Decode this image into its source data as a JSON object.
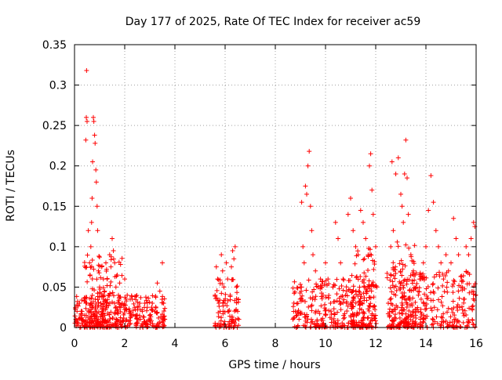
{
  "chart_data": {
    "type": "scatter",
    "title": "Day 177 of 2025, Rate Of TEC Index for receiver ac59",
    "xlabel": "GPS time / hours",
    "ylabel": "ROTI / TECUs",
    "xlim": [
      0,
      16
    ],
    "ylim": [
      0,
      0.35
    ],
    "x_ticks": [
      0,
      2,
      4,
      6,
      8,
      10,
      12,
      14,
      16
    ],
    "x_tick_labels": [
      "0",
      "2",
      "4",
      "6",
      "8",
      "10",
      "12",
      "14",
      "16"
    ],
    "y_ticks": [
      0,
      0.05,
      0.1,
      0.15,
      0.2,
      0.25,
      0.3,
      0.35
    ],
    "y_tick_labels": [
      "0",
      "0.05",
      "0.1",
      "0.15",
      "0.2",
      "0.25",
      "0.3",
      "0.35"
    ],
    "grid": true,
    "marker": "+",
    "series": [
      {
        "name": "ROTI",
        "color": "#ff0000",
        "points": [
          [
            0.05,
            0.01
          ],
          [
            0.1,
            0.02
          ],
          [
            0.15,
            0.005
          ],
          [
            0.2,
            0.03
          ],
          [
            0.25,
            0.012
          ],
          [
            0.3,
            0.02
          ],
          [
            0.35,
            0.008
          ],
          [
            0.4,
            0.015
          ],
          [
            0.45,
            0.232
          ],
          [
            0.47,
            0.26
          ],
          [
            0.48,
            0.318
          ],
          [
            0.5,
            0.255
          ],
          [
            0.55,
            0.12
          ],
          [
            0.6,
            0.08
          ],
          [
            0.62,
            0.065
          ],
          [
            0.65,
            0.1
          ],
          [
            0.68,
            0.13
          ],
          [
            0.7,
            0.16
          ],
          [
            0.72,
            0.205
          ],
          [
            0.75,
            0.26
          ],
          [
            0.77,
            0.255
          ],
          [
            0.8,
            0.238
          ],
          [
            0.82,
            0.228
          ],
          [
            0.85,
            0.195
          ],
          [
            0.87,
            0.18
          ],
          [
            0.9,
            0.15
          ],
          [
            0.92,
            0.12
          ],
          [
            0.95,
            0.07
          ],
          [
            1.0,
            0.05
          ],
          [
            1.05,
            0.03
          ],
          [
            1.1,
            0.02
          ],
          [
            1.15,
            0.06
          ],
          [
            1.2,
            0.045
          ],
          [
            1.25,
            0.08
          ],
          [
            1.3,
            0.06
          ],
          [
            1.35,
            0.04
          ],
          [
            1.4,
            0.09
          ],
          [
            1.45,
            0.075
          ],
          [
            1.5,
            0.11
          ],
          [
            1.55,
            0.095
          ],
          [
            1.6,
            0.08
          ],
          [
            1.65,
            0.05
          ],
          [
            1.7,
            0.065
          ],
          [
            1.75,
            0.04
          ],
          [
            1.8,
            0.055
          ],
          [
            1.9,
            0.03
          ],
          [
            2.0,
            0.06
          ],
          [
            2.1,
            0.04
          ],
          [
            2.2,
            0.02
          ],
          [
            2.3,
            0.035
          ],
          [
            2.4,
            0.025
          ],
          [
            2.5,
            0.015
          ],
          [
            2.6,
            0.03
          ],
          [
            2.7,
            0.02
          ],
          [
            2.8,
            0.03
          ],
          [
            2.9,
            0.025
          ],
          [
            3.0,
            0.015
          ],
          [
            3.1,
            0.03
          ],
          [
            3.2,
            0.02
          ],
          [
            3.3,
            0.055
          ],
          [
            3.4,
            0.045
          ],
          [
            3.5,
            0.08
          ],
          [
            3.55,
            0.03
          ],
          [
            3.6,
            0.01
          ],
          [
            5.6,
            0.04
          ],
          [
            5.65,
            0.075
          ],
          [
            5.7,
            0.06
          ],
          [
            5.75,
            0.03
          ],
          [
            5.8,
            0.02
          ],
          [
            5.85,
            0.09
          ],
          [
            5.9,
            0.07
          ],
          [
            5.95,
            0.05
          ],
          [
            6.0,
            0.03
          ],
          [
            6.05,
            0.08
          ],
          [
            6.1,
            0.06
          ],
          [
            6.15,
            0.02
          ],
          [
            6.2,
            0.04
          ],
          [
            6.25,
            0.075
          ],
          [
            6.3,
            0.095
          ],
          [
            6.35,
            0.085
          ],
          [
            6.4,
            0.1
          ],
          [
            6.45,
            0.05
          ],
          [
            6.5,
            0.02
          ],
          [
            6.55,
            0.01
          ],
          [
            8.7,
            0.01
          ],
          [
            8.8,
            0.02
          ],
          [
            8.9,
            0.03
          ],
          [
            9.0,
            0.05
          ],
          [
            9.05,
            0.155
          ],
          [
            9.1,
            0.1
          ],
          [
            9.15,
            0.08
          ],
          [
            9.2,
            0.175
          ],
          [
            9.25,
            0.165
          ],
          [
            9.3,
            0.2
          ],
          [
            9.35,
            0.218
          ],
          [
            9.4,
            0.15
          ],
          [
            9.45,
            0.12
          ],
          [
            9.5,
            0.09
          ],
          [
            9.6,
            0.07
          ],
          [
            9.7,
            0.05
          ],
          [
            9.8,
            0.06
          ],
          [
            9.9,
            0.04
          ],
          [
            10.0,
            0.08
          ],
          [
            10.1,
            0.06
          ],
          [
            10.2,
            0.03
          ],
          [
            10.3,
            0.05
          ],
          [
            10.4,
            0.13
          ],
          [
            10.5,
            0.11
          ],
          [
            10.6,
            0.08
          ],
          [
            10.7,
            0.06
          ],
          [
            10.8,
            0.04
          ],
          [
            10.9,
            0.14
          ],
          [
            11.0,
            0.16
          ],
          [
            11.1,
            0.12
          ],
          [
            11.2,
            0.1
          ],
          [
            11.3,
            0.09
          ],
          [
            11.4,
            0.145
          ],
          [
            11.5,
            0.13
          ],
          [
            11.6,
            0.11
          ],
          [
            11.7,
            0.09
          ],
          [
            11.75,
            0.2
          ],
          [
            11.8,
            0.215
          ],
          [
            11.85,
            0.17
          ],
          [
            11.9,
            0.14
          ],
          [
            12.0,
            0.1
          ],
          [
            12.05,
            0.05
          ],
          [
            12.5,
            0.03
          ],
          [
            12.6,
            0.1
          ],
          [
            12.65,
            0.205
          ],
          [
            12.7,
            0.12
          ],
          [
            12.8,
            0.19
          ],
          [
            12.9,
            0.21
          ],
          [
            13.0,
            0.165
          ],
          [
            13.05,
            0.15
          ],
          [
            13.1,
            0.13
          ],
          [
            13.15,
            0.19
          ],
          [
            13.2,
            0.232
          ],
          [
            13.25,
            0.185
          ],
          [
            13.3,
            0.14
          ],
          [
            13.4,
            0.09
          ],
          [
            13.5,
            0.07
          ],
          [
            13.6,
            0.05
          ],
          [
            13.7,
            0.04
          ],
          [
            13.8,
            0.06
          ],
          [
            13.9,
            0.08
          ],
          [
            14.0,
            0.1
          ],
          [
            14.1,
            0.145
          ],
          [
            14.2,
            0.188
          ],
          [
            14.3,
            0.155
          ],
          [
            14.4,
            0.12
          ],
          [
            14.5,
            0.1
          ],
          [
            14.6,
            0.08
          ],
          [
            14.7,
            0.06
          ],
          [
            14.8,
            0.09
          ],
          [
            14.9,
            0.07
          ],
          [
            15.0,
            0.08
          ],
          [
            15.1,
            0.135
          ],
          [
            15.2,
            0.11
          ],
          [
            15.3,
            0.09
          ],
          [
            15.4,
            0.05
          ],
          [
            15.5,
            0.035
          ],
          [
            15.6,
            0.1
          ],
          [
            15.7,
            0.09
          ],
          [
            15.8,
            0.11
          ],
          [
            15.9,
            0.13
          ],
          [
            15.95,
            0.125
          ]
        ]
      }
    ],
    "dense_clusters": [
      {
        "x_start": 0.0,
        "x_end": 3.6,
        "y_max": 0.04
      },
      {
        "x_start": 0.4,
        "x_end": 1.9,
        "y_max": 0.09
      },
      {
        "x_start": 5.6,
        "x_end": 6.55,
        "y_max": 0.06
      },
      {
        "x_start": 8.7,
        "x_end": 12.05,
        "y_max": 0.06
      },
      {
        "x_start": 11.0,
        "x_end": 12.0,
        "y_max": 0.1
      },
      {
        "x_start": 12.45,
        "x_end": 16.0,
        "y_max": 0.07
      },
      {
        "x_start": 12.6,
        "x_end": 13.6,
        "y_max": 0.11
      }
    ]
  }
}
